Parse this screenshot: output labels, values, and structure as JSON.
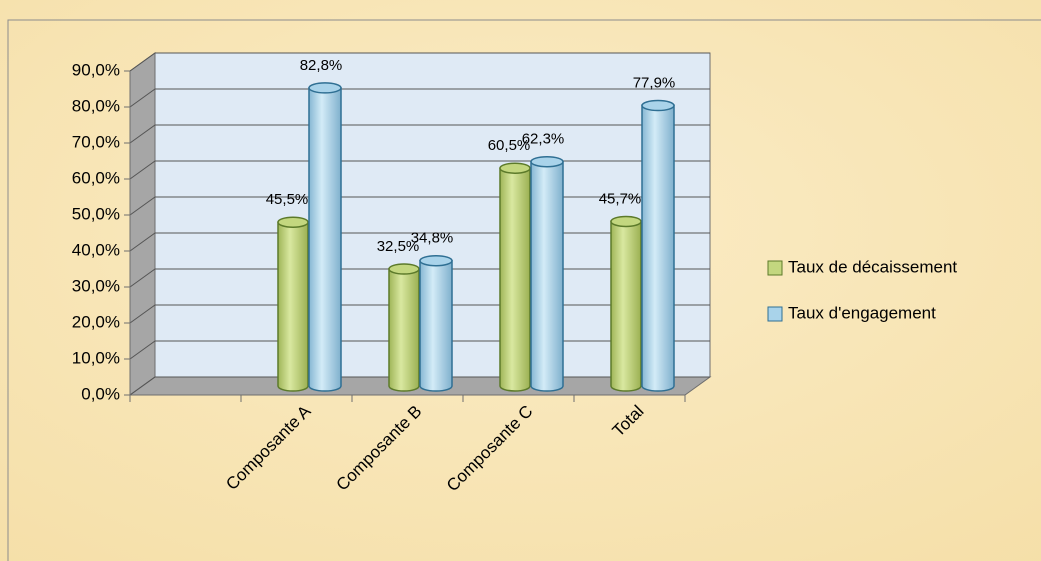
{
  "chart_data": {
    "type": "bar3d",
    "categories": [
      null,
      "Composante A",
      "Composante B",
      "Composante C",
      "Total"
    ],
    "series": [
      {
        "name": "Taux de décaissement",
        "color": "#c3d77f",
        "values": [
          null,
          45.5,
          32.5,
          60.5,
          45.7
        ],
        "value_labels": [
          null,
          "45,5%",
          "32,5%",
          "60,5%",
          "45,7%"
        ]
      },
      {
        "name": "Taux d'engagement",
        "color": "#a9d3ea",
        "values": [
          null,
          82.8,
          34.8,
          62.3,
          77.9
        ],
        "value_labels": [
          null,
          "82,8%",
          "34,8%",
          "62,3%",
          "77,9%"
        ]
      }
    ],
    "ylim": [
      0,
      90
    ],
    "yticks": [
      {
        "value": 0,
        "label": "0,0%"
      },
      {
        "value": 10,
        "label": "10,0%"
      },
      {
        "value": 20,
        "label": "20,0%"
      },
      {
        "value": 30,
        "label": "30,0%"
      },
      {
        "value": 40,
        "label": "40,0%"
      },
      {
        "value": 50,
        "label": "50,0%"
      },
      {
        "value": 60,
        "label": "60,0%"
      },
      {
        "value": 70,
        "label": "70,0%"
      },
      {
        "value": 80,
        "label": "80,0%"
      },
      {
        "value": 90,
        "label": "90,0%"
      }
    ],
    "grid": true,
    "legend": "right"
  }
}
